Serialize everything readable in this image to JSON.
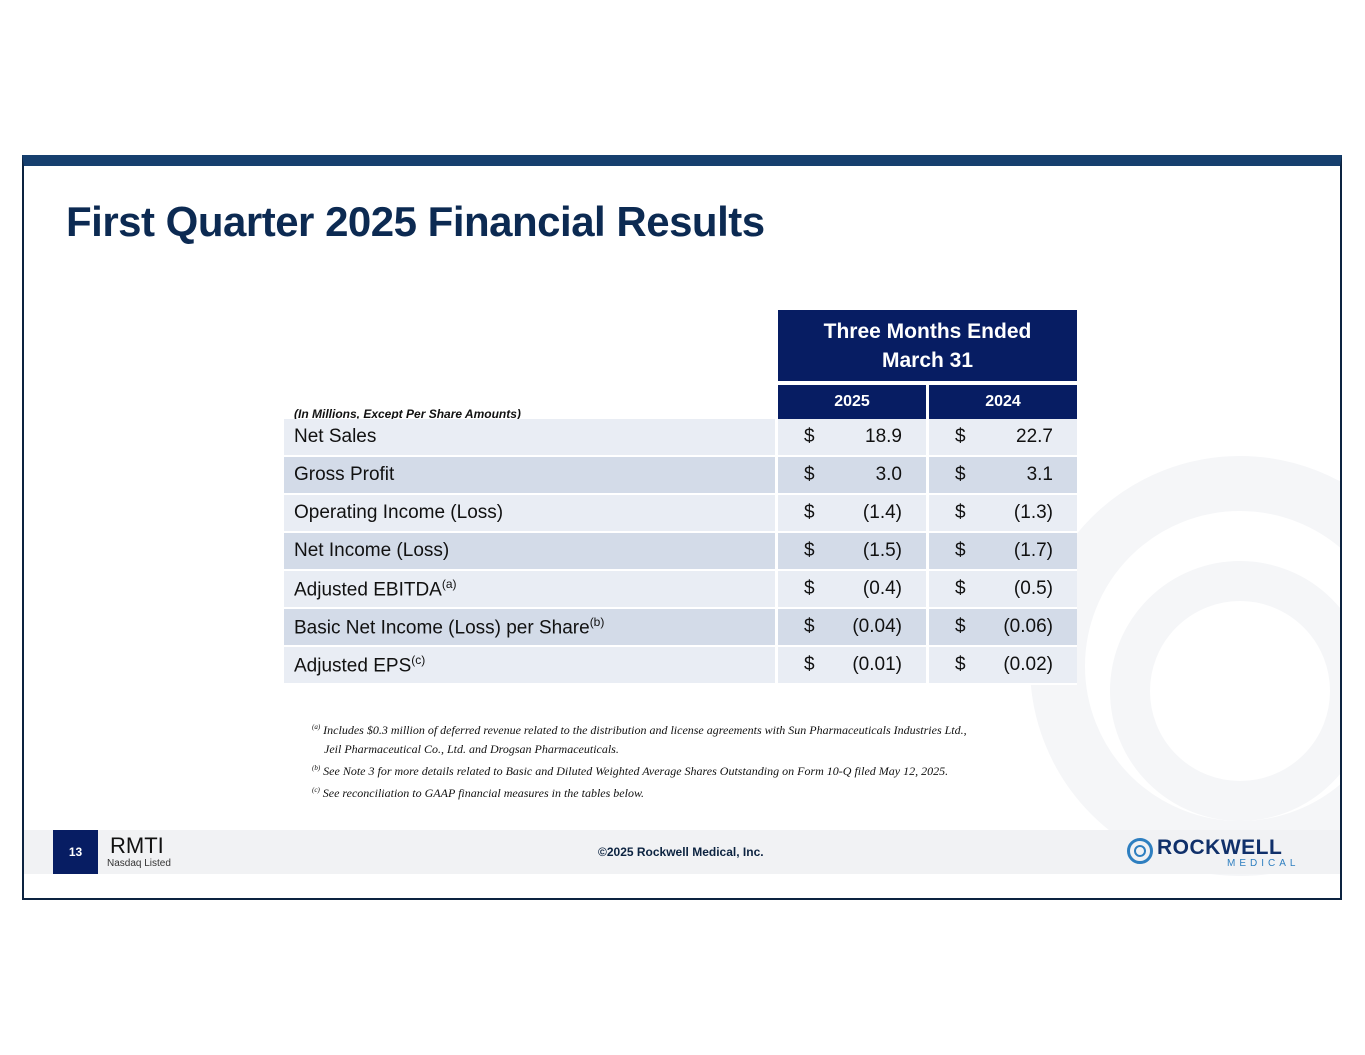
{
  "slide": {
    "title": "First Quarter 2025 Financial Results",
    "units_note": "(In Millions, Except Per Share Amounts)"
  },
  "table": {
    "period_header_line1": "Three Months Ended",
    "period_header_line2": "March 31",
    "years": [
      "2025",
      "2024"
    ],
    "rows": [
      {
        "label": "Net Sales",
        "sup": "",
        "cur_2025": "$",
        "val_2025": "18.9",
        "cur_2024": "$",
        "val_2024": "22.7"
      },
      {
        "label": "Gross Profit",
        "sup": "",
        "cur_2025": "$",
        "val_2025": "3.0",
        "cur_2024": "$",
        "val_2024": "3.1"
      },
      {
        "label": "Operating Income (Loss)",
        "sup": "",
        "cur_2025": "$",
        "val_2025": "(1.4)",
        "cur_2024": "$",
        "val_2024": "(1.3)"
      },
      {
        "label": "Net Income (Loss)",
        "sup": "",
        "cur_2025": "$",
        "val_2025": "(1.5)",
        "cur_2024": "$",
        "val_2024": "(1.7)"
      },
      {
        "label": "Adjusted EBITDA",
        "sup": "(a)",
        "cur_2025": "$",
        "val_2025": "(0.4)",
        "cur_2024": "$",
        "val_2024": "(0.5)"
      },
      {
        "label": "Basic Net Income (Loss) per Share",
        "sup": "(b)",
        "cur_2025": "$",
        "val_2025": "(0.04)",
        "cur_2024": "$",
        "val_2024": "(0.06)"
      },
      {
        "label": "Adjusted EPS",
        "sup": "(c)",
        "cur_2025": "$",
        "val_2025": "(0.01)",
        "cur_2024": "$",
        "val_2024": "(0.02)"
      }
    ]
  },
  "footnotes": {
    "a_marker": "(a)",
    "a_line1": "Includes $0.3 million of deferred revenue related to the distribution and license agreements with Sun Pharmaceuticals Industries Ltd.,",
    "a_line2": "Jeil Pharmaceutical Co., Ltd. and Drogsan Pharmaceuticals.",
    "b_marker": "(b)",
    "b_text": "See Note 3 for more details related to Basic and Diluted Weighted Average Shares Outstanding on Form 10-Q filed May 12, 2025.",
    "c_marker": "(c)",
    "c_text": "See reconciliation to GAAP financial measures in the tables below."
  },
  "footer": {
    "page_number": "13",
    "ticker": "RMTI",
    "exchange": "Nasdaq Listed",
    "copyright": "©2025 Rockwell Medical, Inc.",
    "logo_name": "ROCKWELL",
    "logo_sub": "MEDICAL"
  },
  "colors": {
    "title": "#0c2a52",
    "header_bg": "#071d63",
    "row_light": "#e9edf4",
    "row_dark": "#d3dbe8",
    "frame": "#163f6e"
  }
}
